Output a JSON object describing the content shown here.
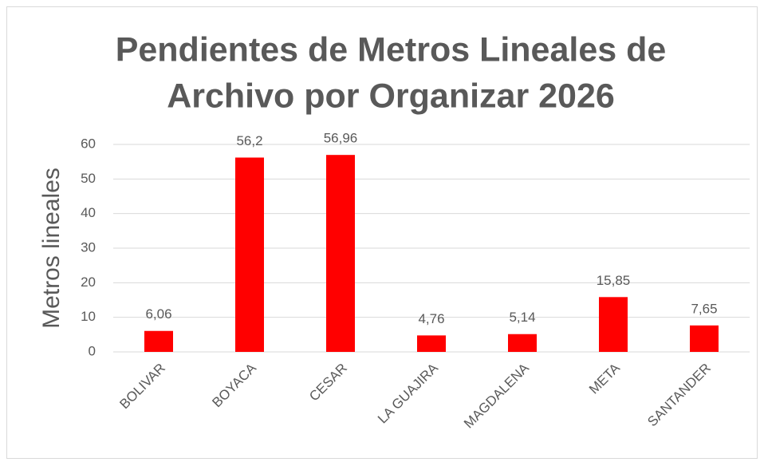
{
  "chart_data": {
    "type": "bar",
    "title": [
      "Pendientes de Metros Lineales de",
      "Archivo por Organizar 2026"
    ],
    "y_label": "Metros lineales",
    "categories": [
      "BOLIVAR",
      "BOYACA",
      "CESAR",
      "LA GUAJIRA",
      "MAGDALENA",
      "META",
      "SANTANDER"
    ],
    "values": [
      6.06,
      56.2,
      56.96,
      4.76,
      5.14,
      15.85,
      7.65
    ],
    "value_labels": [
      "6,06",
      "56,2",
      "56,96",
      "4,76",
      "5,14",
      "15,85",
      "7,65"
    ],
    "color": "#ff0000",
    "ylim": [
      0,
      60
    ],
    "yticks": [
      0,
      10,
      20,
      30,
      40,
      50,
      60
    ],
    "grid": true
  }
}
